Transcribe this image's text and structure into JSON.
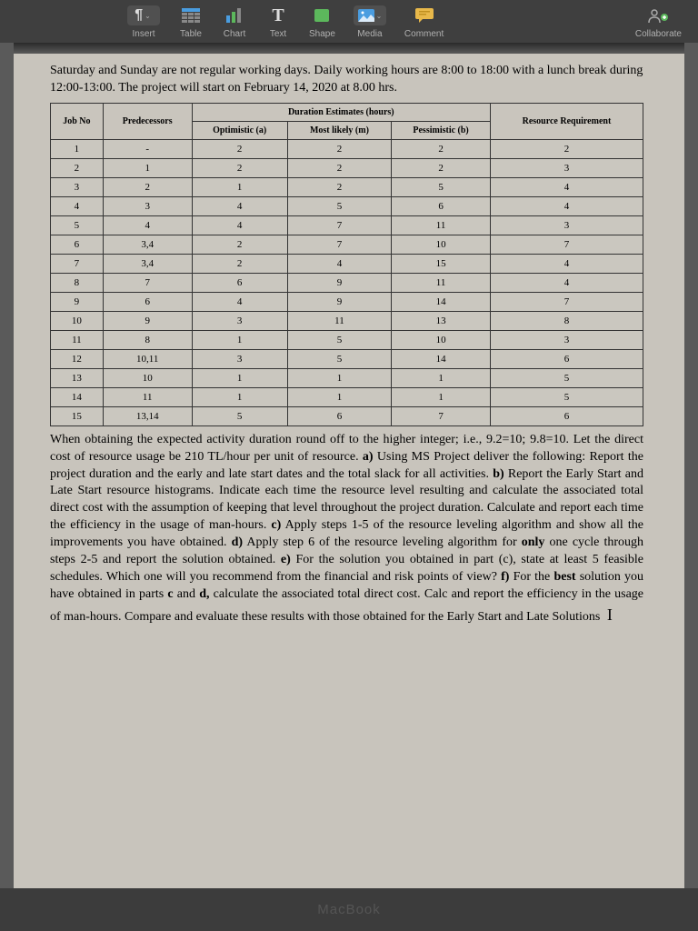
{
  "toolbar": {
    "items": [
      {
        "label": "Insert"
      },
      {
        "label": "Table"
      },
      {
        "label": "Chart"
      },
      {
        "label": "Text"
      },
      {
        "label": "Shape"
      },
      {
        "label": "Media"
      },
      {
        "label": "Comment"
      }
    ],
    "collaborate": "Collaborate"
  },
  "intro": "Saturday and Sunday are not regular working days. Daily working hours are 8:00 to 18:00 with a lunch break during 12:00-13:00. The project will start on February 14, 2020 at 8.00 hrs.",
  "table": {
    "header": {
      "job": "Job No",
      "pred": "Predecessors",
      "dur": "Duration Estimates (hours)",
      "opt": "Optimistic (a)",
      "most": "Most likely (m)",
      "pess": "Pessimistic (b)",
      "res": "Resource Requirement"
    },
    "rows": [
      {
        "job": "1",
        "pred": "-",
        "opt": "2",
        "most": "2",
        "pess": "2",
        "res": "2"
      },
      {
        "job": "2",
        "pred": "1",
        "opt": "2",
        "most": "2",
        "pess": "2",
        "res": "3"
      },
      {
        "job": "3",
        "pred": "2",
        "opt": "1",
        "most": "2",
        "pess": "5",
        "res": "4"
      },
      {
        "job": "4",
        "pred": "3",
        "opt": "4",
        "most": "5",
        "pess": "6",
        "res": "4"
      },
      {
        "job": "5",
        "pred": "4",
        "opt": "4",
        "most": "7",
        "pess": "11",
        "res": "3"
      },
      {
        "job": "6",
        "pred": "3,4",
        "opt": "2",
        "most": "7",
        "pess": "10",
        "res": "7"
      },
      {
        "job": "7",
        "pred": "3,4",
        "opt": "2",
        "most": "4",
        "pess": "15",
        "res": "4"
      },
      {
        "job": "8",
        "pred": "7",
        "opt": "6",
        "most": "9",
        "pess": "11",
        "res": "4"
      },
      {
        "job": "9",
        "pred": "6",
        "opt": "4",
        "most": "9",
        "pess": "14",
        "res": "7"
      },
      {
        "job": "10",
        "pred": "9",
        "opt": "3",
        "most": "11",
        "pess": "13",
        "res": "8"
      },
      {
        "job": "11",
        "pred": "8",
        "opt": "1",
        "most": "5",
        "pess": "10",
        "res": "3"
      },
      {
        "job": "12",
        "pred": "10,11",
        "opt": "3",
        "most": "5",
        "pess": "14",
        "res": "6"
      },
      {
        "job": "13",
        "pred": "10",
        "opt": "1",
        "most": "1",
        "pess": "1",
        "res": "5"
      },
      {
        "job": "14",
        "pred": "11",
        "opt": "1",
        "most": "1",
        "pess": "1",
        "res": "5"
      },
      {
        "job": "15",
        "pred": "13,14",
        "opt": "5",
        "most": "6",
        "pess": "7",
        "res": "6"
      }
    ]
  },
  "body": {
    "p1": "When obtaining the expected activity duration round off to the higher integer; i.e., 9.2=10; 9.8=10. Let the direct cost of resource usage be 210 TL/hour per unit of resource. ",
    "a": "a)",
    "at": " Using MS Project deliver the following: Report the project duration and the early and late start dates and the total slack for all activities. ",
    "b": "b)",
    "bt": " Report the Early Start and Late Start resource histograms. Indicate each time the resource level resulting and calculate the associated total direct cost with the assumption of keeping that level throughout the project duration. Calculate and report each time the efficiency in the usage of man-hours. ",
    "c": "c)",
    "ct": " Apply steps 1-5 of the resource leveling algorithm and show all the improvements you have obtained. ",
    "d": "d)",
    "dt": " Apply step 6 of the resource leveling algorithm for ",
    "only": "only",
    "dt2": " one cycle through steps 2-5 and report the solution obtained. ",
    "e": "e)",
    "et": " For the solution you obtained in part (c), state at least 5 feasible schedules. Which one will you recommend from the financial and risk points of view? ",
    "f": "f)",
    "ft": " For the ",
    "best": "best",
    "ft2": " solution you have obtained in parts ",
    "cbold": "c",
    "and1": " and ",
    "dbold": "d,",
    "ft3": " calculate the associated total direct cost. Calc and report the efficiency in the usage of man-hours. Compare and evaluate these results with those obtained for the Early Start and Late Solutions"
  },
  "footer": "MacBook"
}
